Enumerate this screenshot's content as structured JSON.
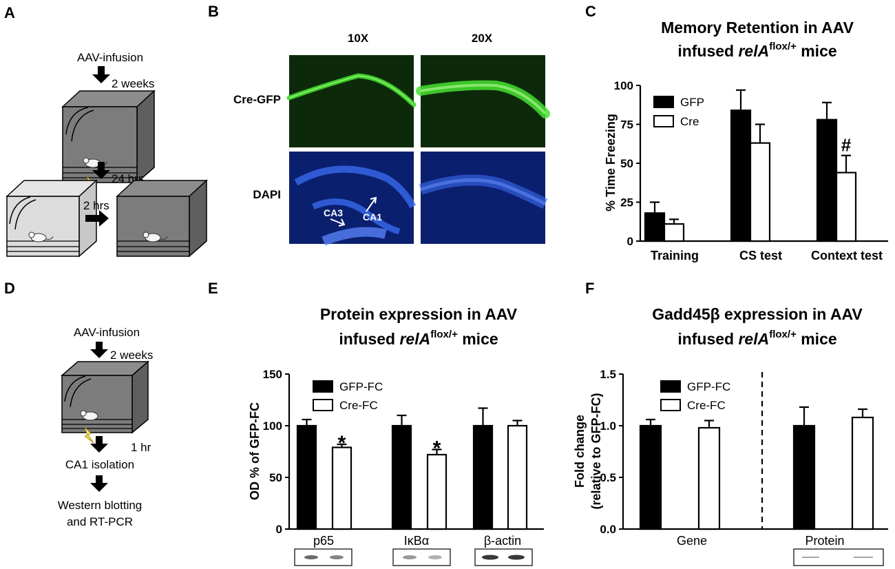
{
  "panels": {
    "A": "A",
    "B": "B",
    "C": "C",
    "D": "D",
    "E": "E",
    "F": "F"
  },
  "panel_a": {
    "step1": "AAV-infusion",
    "interval1": "2 weeks",
    "interval2": "24 hrs",
    "interval3": "2 hrs"
  },
  "panel_b": {
    "col1": "10X",
    "col2": "20X",
    "row1": "Cre-GFP",
    "row2": "DAPI",
    "ca3": "CA3",
    "ca1": "CA1",
    "colors": {
      "gfp_bg": "#0c2a0a",
      "gfp_signal": "#5ef03a",
      "dapi_bg": "#0a1f6e",
      "dapi_signal": "#3f73ff"
    }
  },
  "panel_d": {
    "step1": "AAV-infusion",
    "interval1": "2 weeks",
    "interval2": "1 hr",
    "step2": "CA1 isolation",
    "step3_line1": "Western blotting",
    "step3_line2": "and RT-PCR"
  },
  "colors": {
    "filled": "#000000",
    "open": "#ffffff"
  },
  "chart_data": [
    {
      "id": "C",
      "type": "bar",
      "title_line1": "Memory Retention in AAV",
      "title_line2_pre": "infused ",
      "title_italic": "relA",
      "title_sup": "flox/+",
      "title_post": " mice",
      "ylabel": "% Time Freezing",
      "ylim": [
        0,
        100
      ],
      "yticks": [
        0,
        25,
        50,
        75,
        100
      ],
      "categories": [
        "Training",
        "CS test",
        "Context test"
      ],
      "series": [
        {
          "name": "GFP",
          "fill": "filled",
          "values": [
            18,
            84,
            78
          ],
          "errors": [
            7,
            13,
            11
          ]
        },
        {
          "name": "Cre",
          "fill": "open",
          "values": [
            11,
            63,
            44
          ],
          "errors": [
            3,
            12,
            11
          ]
        }
      ],
      "annotations": [
        {
          "category": 2,
          "series": 1,
          "text": "#"
        }
      ],
      "legend": "top-left"
    },
    {
      "id": "E",
      "type": "bar",
      "title_line1": "Protein expression in AAV",
      "title_line2_pre": "infused ",
      "title_italic": "relA",
      "title_sup": "flox/+",
      "title_post": " mice",
      "ylabel": "OD % of GFP-FC",
      "ylim": [
        0,
        150
      ],
      "yticks": [
        0,
        50,
        100,
        150
      ],
      "categories": [
        "p65",
        "IκBα",
        "β-actin"
      ],
      "series": [
        {
          "name": "GFP-FC",
          "fill": "filled",
          "values": [
            100,
            100,
            100
          ],
          "errors": [
            6,
            10,
            17
          ]
        },
        {
          "name": "Cre-FC",
          "fill": "open",
          "values": [
            79,
            72,
            100
          ],
          "errors": [
            3,
            5,
            5
          ]
        }
      ],
      "annotations": [
        {
          "category": 0,
          "series": 1,
          "text": "*"
        },
        {
          "category": 1,
          "series": 1,
          "text": "*"
        }
      ],
      "legend": "top-left"
    },
    {
      "id": "F",
      "type": "bar",
      "title_line1": "Gadd45β expression in AAV",
      "title_line2_pre": "infused ",
      "title_italic": "relA",
      "title_sup": "flox/+",
      "title_post": " mice",
      "ylabel_line1": "Fold change",
      "ylabel_line2": "(relative to GFP-FC)",
      "ylim": [
        0,
        1.5
      ],
      "yticks": [
        "0.0",
        "0.5",
        "1.0",
        "1.5"
      ],
      "categories": [
        "Gene",
        "Protein"
      ],
      "series": [
        {
          "name": "GFP-FC",
          "fill": "filled",
          "values": [
            1.0,
            1.0
          ],
          "errors": [
            0.06,
            0.18
          ]
        },
        {
          "name": "Cre-FC",
          "fill": "open",
          "values": [
            0.98,
            1.08
          ],
          "errors": [
            0.07,
            0.08
          ]
        }
      ],
      "legend": "top-left"
    }
  ]
}
